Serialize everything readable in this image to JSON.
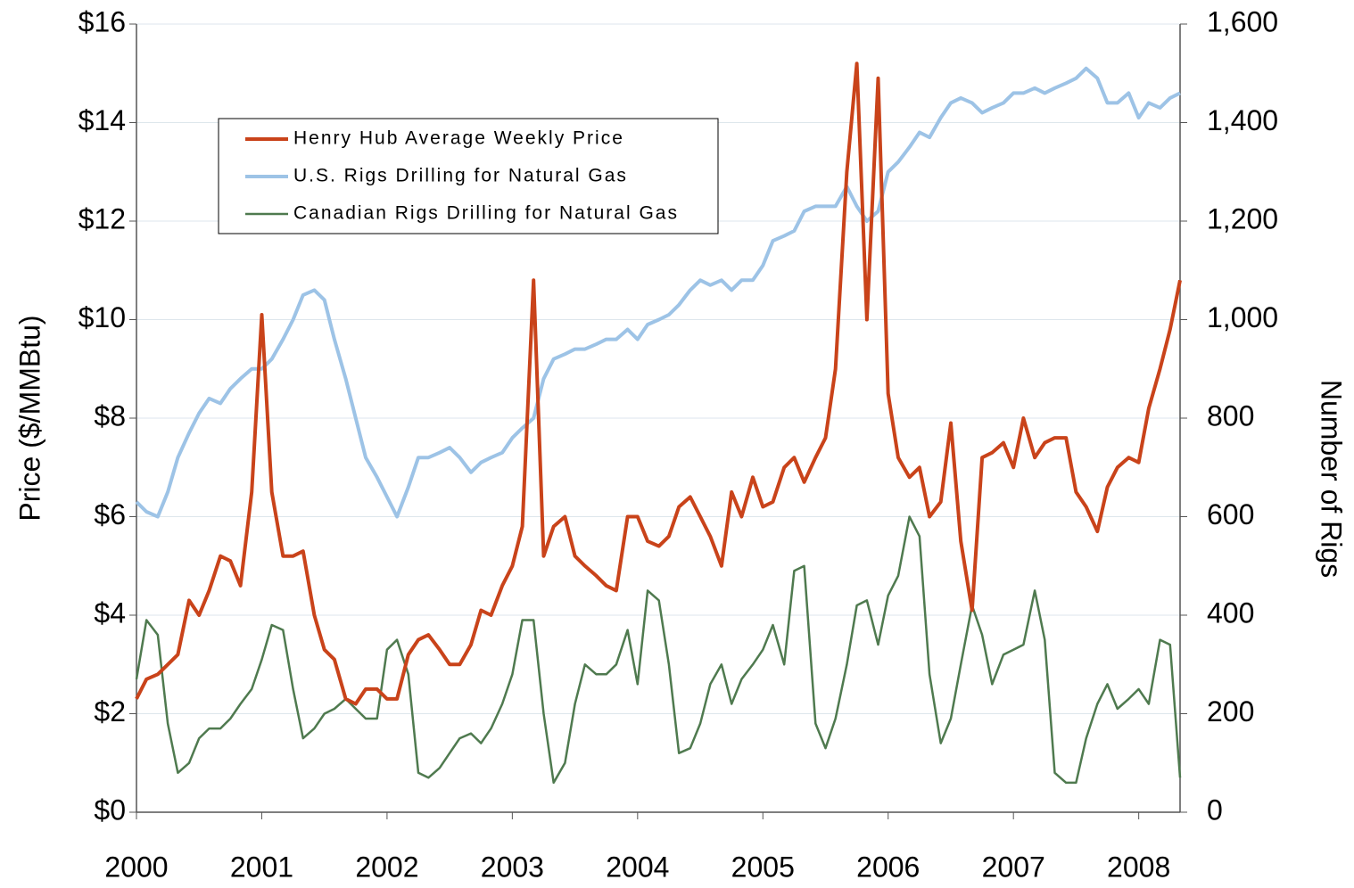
{
  "chart_data": {
    "type": "line",
    "ylabel": "Price ($/MMBtu)",
    "y2label": "Number of Rigs",
    "x": [
      2000,
      2000.08,
      2000.17,
      2000.25,
      2000.33,
      2000.42,
      2000.5,
      2000.58,
      2000.67,
      2000.75,
      2000.83,
      2000.92,
      2001,
      2001.08,
      2001.17,
      2001.25,
      2001.33,
      2001.42,
      2001.5,
      2001.58,
      2001.67,
      2001.75,
      2001.83,
      2001.92,
      2002,
      2002.08,
      2002.17,
      2002.25,
      2002.33,
      2002.42,
      2002.5,
      2002.58,
      2002.67,
      2002.75,
      2002.83,
      2002.92,
      2003,
      2003.08,
      2003.17,
      2003.25,
      2003.33,
      2003.42,
      2003.5,
      2003.58,
      2003.67,
      2003.75,
      2003.83,
      2003.92,
      2004,
      2004.08,
      2004.17,
      2004.25,
      2004.33,
      2004.42,
      2004.5,
      2004.58,
      2004.67,
      2004.75,
      2004.83,
      2004.92,
      2005,
      2005.08,
      2005.17,
      2005.25,
      2005.33,
      2005.42,
      2005.5,
      2005.58,
      2005.67,
      2005.75,
      2005.83,
      2005.92,
      2006,
      2006.08,
      2006.17,
      2006.25,
      2006.33,
      2006.42,
      2006.5,
      2006.58,
      2006.67,
      2006.75,
      2006.83,
      2006.92,
      2007,
      2007.08,
      2007.17,
      2007.25,
      2007.33,
      2007.42,
      2007.5,
      2007.58,
      2007.67,
      2007.75,
      2007.83,
      2007.92,
      2008,
      2008.08,
      2008.17,
      2008.25,
      2008.33
    ],
    "series": [
      {
        "name": "Henry Hub Average Weekly Price",
        "color": "#c9431a",
        "axis": "y",
        "values": [
          2.3,
          2.7,
          2.8,
          3.0,
          3.2,
          4.3,
          4.0,
          4.5,
          5.2,
          5.1,
          4.6,
          6.5,
          10.1,
          6.5,
          5.2,
          5.2,
          5.3,
          4.0,
          3.3,
          3.1,
          2.3,
          2.2,
          2.5,
          2.5,
          2.3,
          2.3,
          3.2,
          3.5,
          3.6,
          3.3,
          3.0,
          3.0,
          3.4,
          4.1,
          4.0,
          4.6,
          5.0,
          5.8,
          10.8,
          5.2,
          5.8,
          6.0,
          5.2,
          5.0,
          4.8,
          4.6,
          4.5,
          6.0,
          6.0,
          5.5,
          5.4,
          5.6,
          6.2,
          6.4,
          6.0,
          5.6,
          5.0,
          6.5,
          6.0,
          6.8,
          6.2,
          6.3,
          7.0,
          7.2,
          6.7,
          7.2,
          7.6,
          9.0,
          13.0,
          15.2,
          10.0,
          14.9,
          8.5,
          7.2,
          6.8,
          7.0,
          6.0,
          6.3,
          7.9,
          5.5,
          4.1,
          7.2,
          7.3,
          7.5,
          7.0,
          8.0,
          7.2,
          7.5,
          7.6,
          7.6,
          6.5,
          6.2,
          5.7,
          6.6,
          7.0,
          7.2,
          7.1,
          8.2,
          9.0,
          9.8,
          10.8
        ]
      },
      {
        "name": "U.S. Rigs Drilling for Natural Gas",
        "color": "#9dc3e6",
        "axis": "y2",
        "values": [
          630,
          610,
          600,
          650,
          720,
          770,
          810,
          840,
          830,
          860,
          880,
          900,
          900,
          920,
          960,
          1000,
          1050,
          1060,
          1040,
          960,
          880,
          800,
          720,
          680,
          640,
          600,
          660,
          720,
          720,
          730,
          740,
          720,
          690,
          710,
          720,
          730,
          760,
          780,
          800,
          880,
          920,
          930,
          940,
          940,
          950,
          960,
          960,
          980,
          960,
          990,
          1000,
          1010,
          1030,
          1060,
          1080,
          1070,
          1080,
          1060,
          1080,
          1080,
          1110,
          1160,
          1170,
          1180,
          1220,
          1230,
          1230,
          1230,
          1270,
          1230,
          1200,
          1220,
          1300,
          1320,
          1350,
          1380,
          1370,
          1410,
          1440,
          1450,
          1440,
          1420,
          1430,
          1440,
          1460,
          1460,
          1470,
          1460,
          1470,
          1480,
          1490,
          1510,
          1490,
          1440,
          1440,
          1460,
          1410,
          1440,
          1430,
          1450,
          1460
        ]
      },
      {
        "name": "Canadian Rigs Drilling for Natural Gas",
        "color": "#4f7a4f",
        "axis": "y2",
        "values": [
          270,
          390,
          360,
          180,
          80,
          100,
          150,
          170,
          170,
          190,
          220,
          250,
          310,
          380,
          370,
          250,
          150,
          170,
          200,
          210,
          230,
          210,
          190,
          190,
          330,
          350,
          280,
          80,
          70,
          90,
          120,
          150,
          160,
          140,
          170,
          220,
          280,
          390,
          390,
          200,
          60,
          100,
          220,
          300,
          280,
          280,
          300,
          370,
          260,
          450,
          430,
          300,
          120,
          130,
          180,
          260,
          300,
          220,
          270,
          300,
          330,
          380,
          300,
          490,
          500,
          180,
          130,
          190,
          300,
          420,
          430,
          340,
          440,
          480,
          600,
          560,
          280,
          140,
          190,
          300,
          420,
          360,
          260,
          320,
          330,
          340,
          450,
          350,
          80,
          60,
          60,
          150,
          220,
          260,
          210,
          230,
          250,
          220,
          350,
          340,
          70
        ]
      }
    ],
    "xlim": [
      2000,
      2008.33
    ],
    "xticks": [
      2000,
      2001,
      2002,
      2003,
      2004,
      2005,
      2006,
      2007,
      2008
    ],
    "ylim": [
      0,
      16
    ],
    "yticks": [
      {
        "value": 0,
        "label": "$0"
      },
      {
        "value": 2,
        "label": "$2"
      },
      {
        "value": 4,
        "label": "$4"
      },
      {
        "value": 6,
        "label": "$6"
      },
      {
        "value": 8,
        "label": "$8"
      },
      {
        "value": 10,
        "label": "$10"
      },
      {
        "value": 12,
        "label": "$12"
      },
      {
        "value": 14,
        "label": "$14"
      },
      {
        "value": 16,
        "label": "$16"
      }
    ],
    "y2lim": [
      0,
      1600
    ],
    "y2ticks": [
      0,
      {
        "value": 200,
        "label": "200"
      },
      {
        "value": 400,
        "label": "400"
      },
      {
        "value": 600,
        "label": "600"
      },
      {
        "value": 800,
        "label": "800"
      },
      {
        "value": 1000,
        "label": "1,000"
      },
      {
        "value": 1200,
        "label": "1,200"
      },
      {
        "value": 1400,
        "label": "1,400"
      },
      {
        "value": 1600,
        "label": "1,600"
      }
    ],
    "grid": true,
    "legend": "upper-left"
  }
}
